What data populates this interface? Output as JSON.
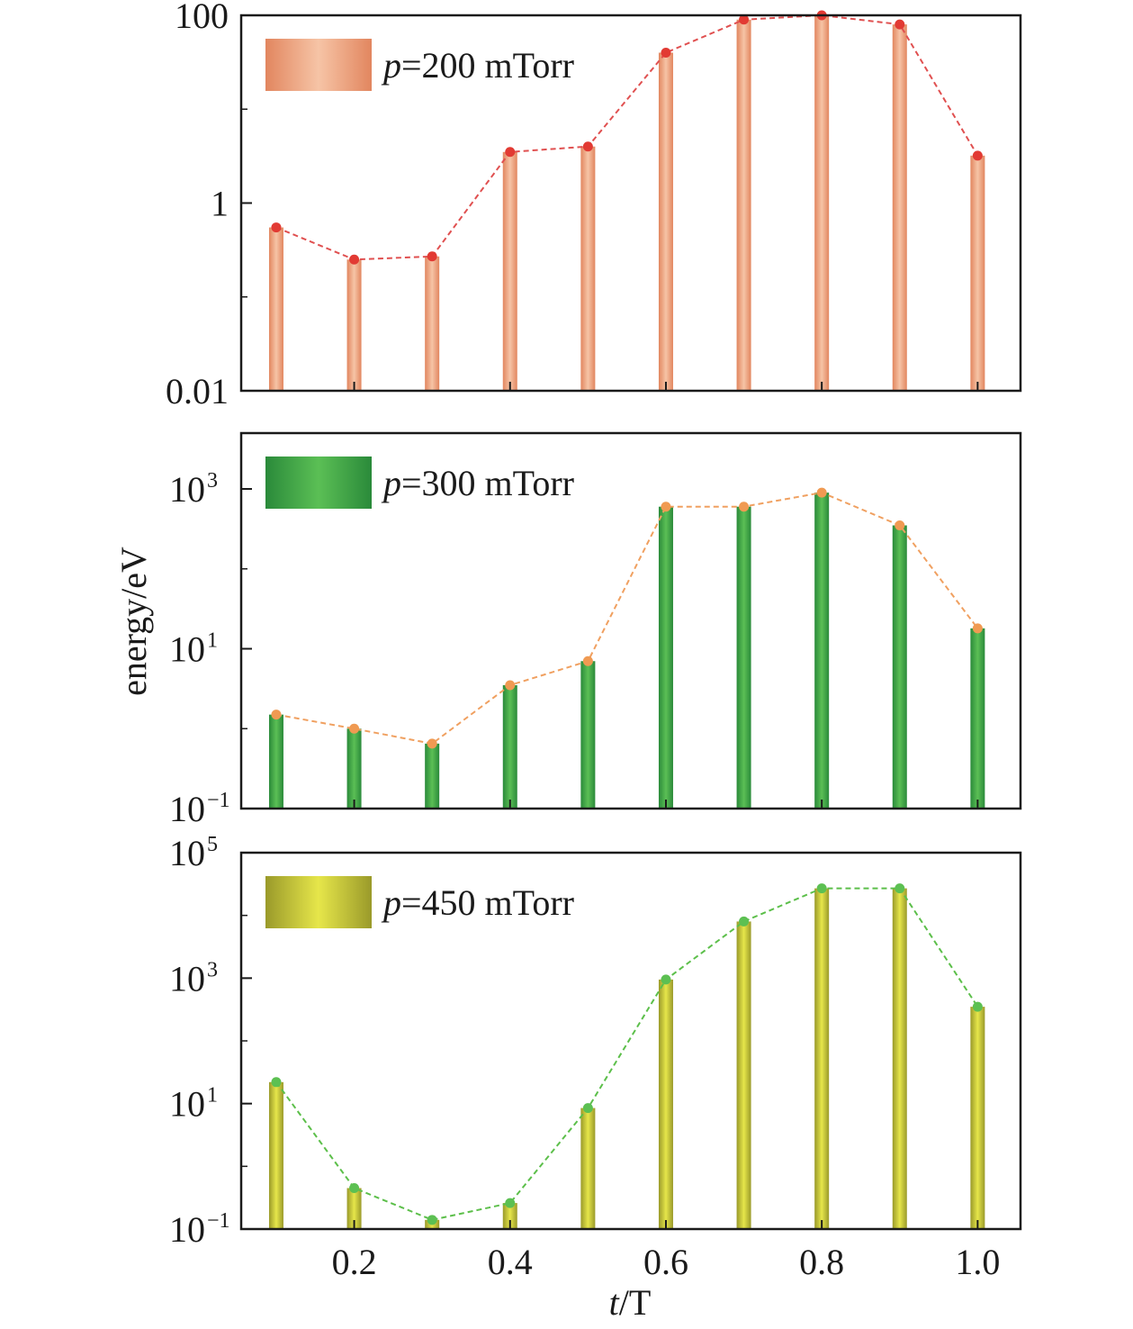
{
  "ylabel": "energy/eV",
  "xlabel_italic": "t",
  "xlabel_rest": "/T",
  "xticks": [
    {
      "value": 0.2,
      "label": "0.2"
    },
    {
      "value": 0.4,
      "label": "0.4"
    },
    {
      "value": 0.6,
      "label": "0.6"
    },
    {
      "value": 0.8,
      "label": "0.8"
    },
    {
      "value": 1.0,
      "label": "1.0"
    }
  ],
  "chart_data": [
    {
      "type": "bar",
      "legend_italic": "p",
      "legend_rest": "=200 mTorr",
      "x": [
        0.1,
        0.2,
        0.3,
        0.4,
        0.5,
        0.6,
        0.7,
        0.8,
        0.9,
        1.0
      ],
      "values": [
        0.55,
        0.25,
        0.27,
        3.5,
        4.0,
        40,
        90,
        100,
        80,
        3.2
      ],
      "ylim": [
        0.01,
        100
      ],
      "yscale": "log",
      "yticks": [
        {
          "value": 0.01,
          "base": "0.01",
          "exp": ""
        },
        {
          "value": 1,
          "base": "1",
          "exp": ""
        },
        {
          "value": 100,
          "base": "100",
          "exp": ""
        }
      ],
      "bar_colors": [
        "#e2865f",
        "#f6c4a6"
      ],
      "line_color": "#e05050",
      "marker_color": "#e23a33",
      "legend_position": "top-left"
    },
    {
      "type": "bar",
      "legend_italic": "p",
      "legend_rest": "=300 mTorr",
      "x": [
        0.1,
        0.2,
        0.3,
        0.4,
        0.5,
        0.6,
        0.7,
        0.8,
        0.9,
        1.0
      ],
      "values": [
        1.5,
        1.0,
        0.65,
        3.5,
        7.0,
        600,
        600,
        900,
        350,
        18
      ],
      "ylim": [
        0.1,
        5000
      ],
      "yscale": "log",
      "yticks": [
        {
          "value": 0.1,
          "base": "10",
          "exp": "−1"
        },
        {
          "value": 10,
          "base": "10",
          "exp": "1"
        },
        {
          "value": 1000,
          "base": "10",
          "exp": "3"
        }
      ],
      "bar_colors": [
        "#2a8a3a",
        "#5bbf55"
      ],
      "line_color": "#f0a060",
      "marker_color": "#f09a52",
      "legend_position": "top-left"
    },
    {
      "type": "bar",
      "legend_italic": "p",
      "legend_rest": "=450 mTorr",
      "x": [
        0.1,
        0.2,
        0.3,
        0.4,
        0.5,
        0.6,
        0.7,
        0.8,
        0.9,
        1.0
      ],
      "values": [
        22,
        0.45,
        0.14,
        0.26,
        8.5,
        950,
        8000,
        27000,
        27000,
        350
      ],
      "ylim": [
        0.1,
        100000
      ],
      "yscale": "log",
      "yticks": [
        {
          "value": 0.1,
          "base": "10",
          "exp": "−1"
        },
        {
          "value": 10,
          "base": "10",
          "exp": "1"
        },
        {
          "value": 1000,
          "base": "10",
          "exp": "3"
        },
        {
          "value": 100000,
          "base": "10",
          "exp": "5"
        }
      ],
      "bar_colors": [
        "#9a9a2a",
        "#e6e64a"
      ],
      "line_color": "#5cbf4a",
      "marker_color": "#5cc052",
      "legend_position": "top-left"
    }
  ]
}
